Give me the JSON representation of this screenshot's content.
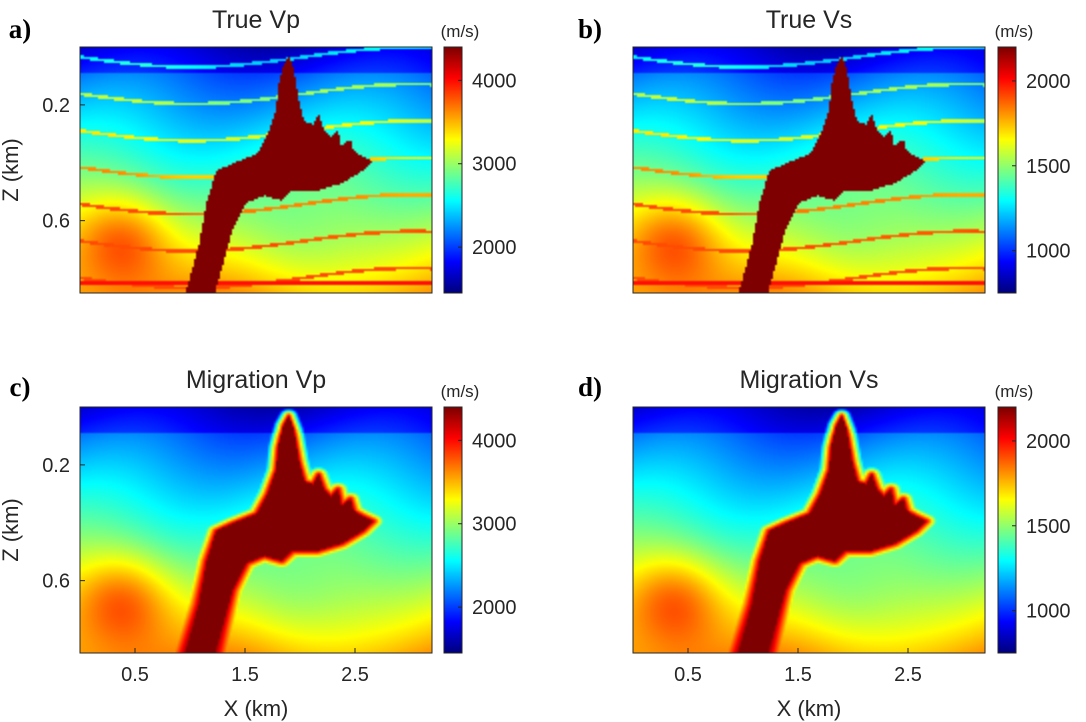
{
  "chart_data": [
    {
      "type": "heatmap",
      "tag": "a)",
      "title": "True Vp",
      "ylabel": "Z (km)",
      "xlabel": "",
      "xlim": [
        0,
        3.2
      ],
      "ylim": [
        0.85,
        0
      ],
      "yticks": [
        "0.2",
        "0.6"
      ],
      "xticks": [],
      "colorbar": {
        "unit": "(m/s)",
        "range": [
          1450,
          4400
        ],
        "ticks": [
          "4000",
          "3000",
          "2000"
        ]
      },
      "model": "true",
      "colors": [
        "#00007f",
        "#0000ff",
        "#007fff",
        "#00ffff",
        "#7fff7f",
        "#ffff00",
        "#ff7f00",
        "#ff0000",
        "#7f0000"
      ]
    },
    {
      "type": "heatmap",
      "tag": "b)",
      "title": "True Vs",
      "ylabel": "",
      "xlabel": "",
      "xlim": [
        0,
        3.2
      ],
      "ylim": [
        0.85,
        0
      ],
      "yticks": [],
      "xticks": [],
      "colorbar": {
        "unit": "(m/s)",
        "range": [
          750,
          2200
        ],
        "ticks": [
          "2000",
          "1500",
          "1000"
        ]
      },
      "model": "true",
      "colors": [
        "#00007f",
        "#0000ff",
        "#007fff",
        "#00ffff",
        "#7fff7f",
        "#ffff00",
        "#ff7f00",
        "#ff0000",
        "#7f0000"
      ]
    },
    {
      "type": "heatmap",
      "tag": "c)",
      "title": "Migration Vp",
      "ylabel": "Z (km)",
      "xlabel": "X (km)",
      "xlim": [
        0,
        3.2
      ],
      "ylim": [
        0.85,
        0
      ],
      "yticks": [
        "0.2",
        "0.6"
      ],
      "xticks": [
        "0.5",
        "1.5",
        "2.5"
      ],
      "colorbar": {
        "unit": "(m/s)",
        "range": [
          1450,
          4400
        ],
        "ticks": [
          "4000",
          "3000",
          "2000"
        ]
      },
      "model": "smooth",
      "colors": [
        "#00007f",
        "#0000ff",
        "#007fff",
        "#00ffff",
        "#7fff7f",
        "#ffff00",
        "#ff7f00",
        "#ff0000",
        "#7f0000"
      ]
    },
    {
      "type": "heatmap",
      "tag": "d)",
      "title": "Migration Vs",
      "ylabel": "",
      "xlabel": "X (km)",
      "xlim": [
        0,
        3.2
      ],
      "ylim": [
        0.85,
        0
      ],
      "yticks": [],
      "xticks": [
        "0.5",
        "1.5",
        "2.5"
      ],
      "colorbar": {
        "unit": "(m/s)",
        "range": [
          750,
          2200
        ],
        "ticks": [
          "2000",
          "1500",
          "1000"
        ]
      },
      "model": "smooth",
      "colors": [
        "#00007f",
        "#0000ff",
        "#007fff",
        "#00ffff",
        "#7fff7f",
        "#ffff00",
        "#ff7f00",
        "#ff0000",
        "#7f0000"
      ]
    }
  ]
}
